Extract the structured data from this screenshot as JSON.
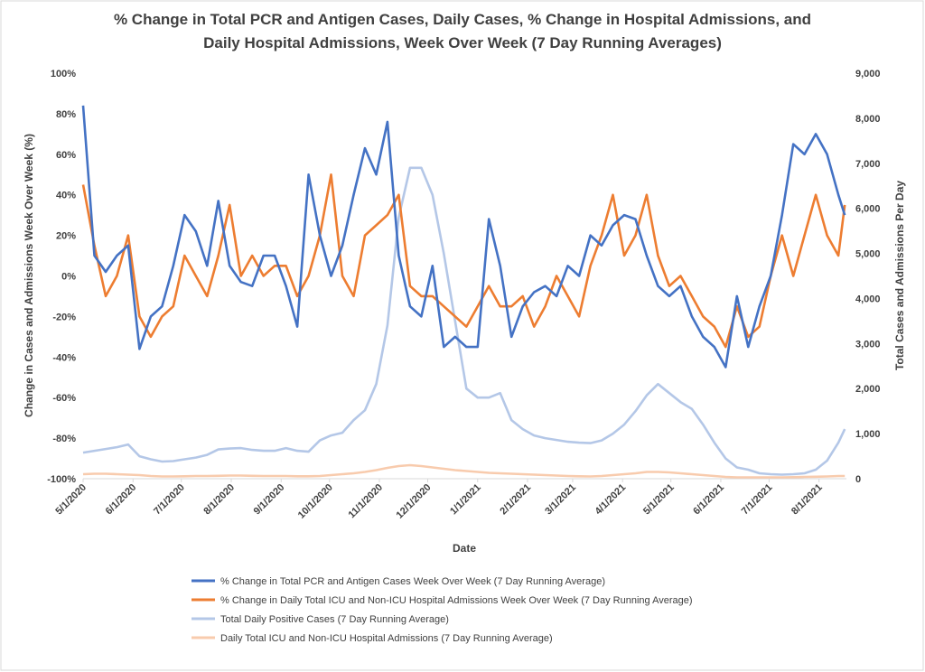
{
  "chart_data": {
    "type": "line",
    "title": "% Change in Total PCR and Antigen Cases, Daily Cases, % Change in Hospital Admissions, and",
    "subtitle": "Daily Hospital Admissions, Week Over Week (7 Day Running Averages)",
    "x_label": "Date",
    "y_label": "Change in Cases and Admissions Week Over Week (%)",
    "y2_label": "Total Cases and Admissions  Per Day",
    "x": [
      "5/1/2020",
      "5/8/2020",
      "5/15/2020",
      "5/22/2020",
      "5/29/2020",
      "6/5/2020",
      "6/12/2020",
      "6/19/2020",
      "6/26/2020",
      "7/3/2020",
      "7/10/2020",
      "7/17/2020",
      "7/24/2020",
      "7/31/2020",
      "8/7/2020",
      "8/14/2020",
      "8/21/2020",
      "8/28/2020",
      "9/4/2020",
      "9/11/2020",
      "9/18/2020",
      "9/25/2020",
      "10/2/2020",
      "10/9/2020",
      "10/16/2020",
      "10/23/2020",
      "10/30/2020",
      "11/6/2020",
      "11/13/2020",
      "11/20/2020",
      "11/27/2020",
      "12/4/2020",
      "12/11/2020",
      "12/18/2020",
      "12/25/2020",
      "1/1/2021",
      "1/8/2021",
      "1/15/2021",
      "1/22/2021",
      "1/29/2021",
      "2/5/2021",
      "2/12/2021",
      "2/19/2021",
      "2/26/2021",
      "3/5/2021",
      "3/12/2021",
      "3/19/2021",
      "3/26/2021",
      "4/2/2021",
      "4/9/2021",
      "4/16/2021",
      "4/23/2021",
      "4/30/2021",
      "5/7/2021",
      "5/14/2021",
      "5/21/2021",
      "5/28/2021",
      "6/4/2021",
      "6/11/2021",
      "6/18/2021",
      "6/25/2021",
      "7/2/2021",
      "7/9/2021",
      "7/16/2021",
      "7/23/2021",
      "7/30/2021",
      "8/6/2021",
      "8/13/2021",
      "8/17/2021"
    ],
    "series": [
      {
        "name": "% Change in Total PCR and Antigen Cases Week Over Week (7 Day Running Average)",
        "color": "#4472c4",
        "values": [
          84,
          10,
          2,
          10,
          15,
          -36,
          -20,
          -15,
          5,
          30,
          22,
          5,
          37,
          5,
          -3,
          -5,
          10,
          10,
          -5,
          -25,
          50,
          20,
          0,
          15,
          40,
          63,
          50,
          76,
          10,
          -15,
          -20,
          5,
          -35,
          -30,
          -35,
          -35,
          28,
          5,
          -30,
          -15,
          -8,
          -5,
          -10,
          5,
          0,
          20,
          15,
          25,
          30,
          28,
          10,
          -5,
          -10,
          -5,
          -20,
          -30,
          -35,
          -45,
          -10,
          -35,
          -15,
          0,
          30,
          65,
          60,
          70,
          60,
          40,
          30
        ]
      },
      {
        "name": "% Change in Daily Total ICU and Non-ICU Hospital Admissions Week Over Week (7 Day Running Average)",
        "color": "#ed7d31",
        "values": [
          45,
          15,
          -10,
          0,
          20,
          -20,
          -30,
          -20,
          -15,
          10,
          0,
          -10,
          10,
          35,
          0,
          10,
          0,
          5,
          5,
          -10,
          0,
          20,
          50,
          0,
          -10,
          20,
          25,
          30,
          40,
          -5,
          -10,
          -10,
          -15,
          -20,
          -25,
          -15,
          -5,
          -15,
          -15,
          -10,
          -25,
          -15,
          0,
          -10,
          -20,
          5,
          20,
          40,
          10,
          20,
          40,
          10,
          -5,
          0,
          -10,
          -20,
          -25,
          -35,
          -15,
          -30,
          -25,
          0,
          20,
          0,
          20,
          40,
          20,
          10,
          35
        ]
      },
      {
        "name": "Total Daily Positive Cases (7 Day Running Average)",
        "color": "#b4c7e7",
        "axis": "y2",
        "values": [
          580,
          620,
          660,
          700,
          760,
          500,
          430,
          380,
          390,
          430,
          470,
          530,
          650,
          670,
          680,
          640,
          620,
          620,
          680,
          620,
          600,
          850,
          960,
          1020,
          1300,
          1520,
          2100,
          3400,
          5800,
          6900,
          6900,
          6300,
          5000,
          3500,
          2000,
          1800,
          1800,
          1900,
          1300,
          1100,
          960,
          900,
          860,
          820,
          800,
          790,
          850,
          1000,
          1200,
          1500,
          1850,
          2100,
          1900,
          1700,
          1550,
          1200,
          800,
          450,
          250,
          200,
          120,
          100,
          90,
          100,
          120,
          200,
          400,
          800,
          1100
        ]
      },
      {
        "name": "Daily Total ICU and Non-ICU Hospital Admissions (7 Day Running Average)",
        "color": "#f8cbad",
        "axis": "y2",
        "values": [
          100,
          110,
          110,
          100,
          90,
          80,
          60,
          50,
          50,
          55,
          60,
          60,
          65,
          70,
          70,
          65,
          60,
          60,
          60,
          55,
          55,
          60,
          80,
          100,
          120,
          150,
          190,
          240,
          280,
          300,
          280,
          250,
          220,
          190,
          170,
          150,
          130,
          120,
          110,
          100,
          90,
          80,
          70,
          60,
          55,
          50,
          60,
          80,
          100,
          120,
          150,
          150,
          140,
          120,
          100,
          80,
          60,
          40,
          30,
          30,
          30,
          30,
          30,
          35,
          40,
          45,
          50,
          60,
          60
        ]
      }
    ],
    "xlim": [
      "5/1/2020",
      "8/18/2021"
    ],
    "xticks": [
      "5/1/2020",
      "6/1/2020",
      "7/1/2020",
      "8/1/2020",
      "9/1/2020",
      "10/1/2020",
      "11/1/2020",
      "12/1/2020",
      "1/1/2021",
      "2/1/2021",
      "3/1/2021",
      "4/1/2021",
      "5/1/2021",
      "6/1/2021",
      "7/1/2021",
      "8/1/2021"
    ],
    "ylim": [
      -100,
      100
    ],
    "yticks": [
      {
        "value": -100,
        "label": "-100%"
      },
      {
        "value": -80,
        "label": "-80%"
      },
      {
        "value": -60,
        "label": "-60%"
      },
      {
        "value": -40,
        "label": "-40%"
      },
      {
        "value": -20,
        "label": "-20%"
      },
      {
        "value": 0,
        "label": "0%"
      },
      {
        "value": 20,
        "label": "20%"
      },
      {
        "value": 40,
        "label": "40%"
      },
      {
        "value": 60,
        "label": "60%"
      },
      {
        "value": 80,
        "label": "80%"
      },
      {
        "value": 100,
        "label": "100%"
      }
    ],
    "y2lim": [
      0,
      9000
    ],
    "y2ticks": [
      0,
      {
        "value": 1000,
        "label": "1,000"
      },
      {
        "value": 2000,
        "label": "2,000"
      },
      {
        "value": 3000,
        "label": "3,000"
      },
      {
        "value": 4000,
        "label": "4,000"
      },
      {
        "value": 5000,
        "label": "5,000"
      },
      {
        "value": 6000,
        "label": "6,000"
      },
      {
        "value": 7000,
        "label": "7,000"
      },
      {
        "value": 8000,
        "label": "8,000"
      },
      {
        "value": 9000,
        "label": "9,000"
      }
    ],
    "grid": false
  }
}
